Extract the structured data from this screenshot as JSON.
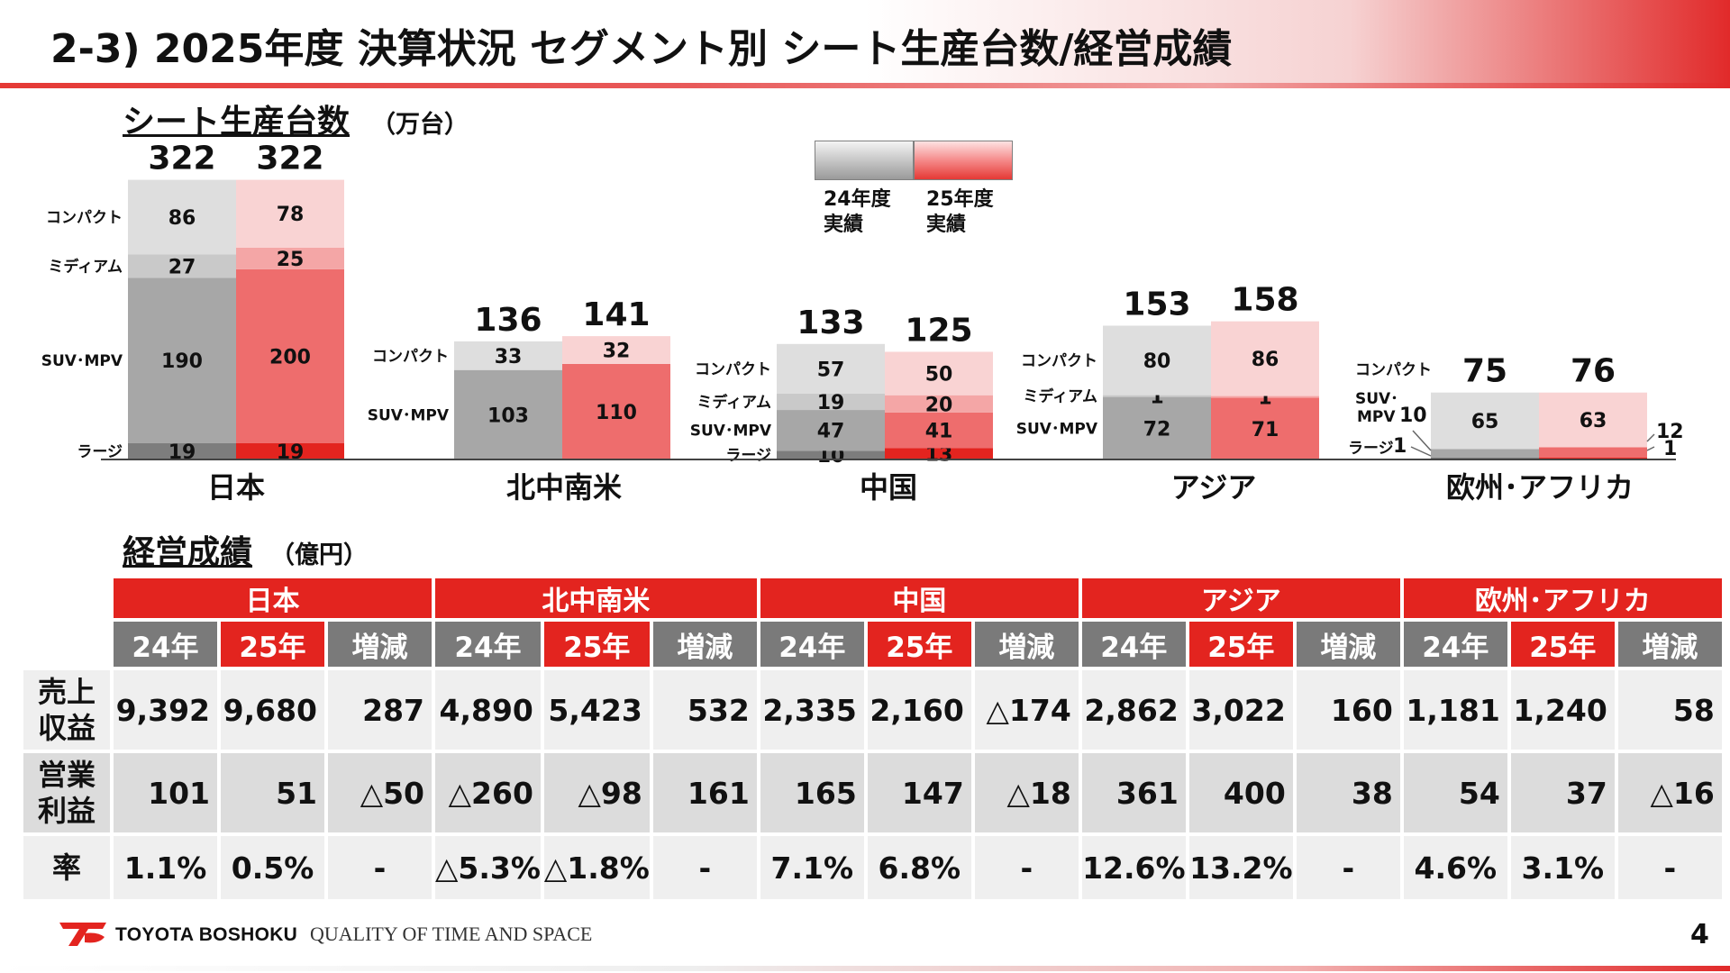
{
  "title": "2-3) 2025年度 決算状況 セグメント別 シート生産台数/経営成績",
  "production": {
    "title": "シート生産台数",
    "unit": "（万台）"
  },
  "legend": {
    "prev": "24年度\n実績",
    "curr": "25年度\n実績",
    "colors": {
      "prev_base": "#9e9e9e",
      "curr_base": "#e3241f"
    }
  },
  "chart_data": {
    "type": "bar",
    "stacked": true,
    "stack_order_bottom_to_top": [
      "ラージ",
      "SUV･MPV",
      "ミディアム",
      "コンパクト"
    ],
    "series_names_prev": "24年度実績",
    "series_names_curr": "25年度実績",
    "groups": [
      {
        "name": "日本",
        "prev": {
          "total": "322",
          "segments": [
            {
              "label": "ラージ",
              "value": 19
            },
            {
              "label": "SUV･MPV",
              "value": 190
            },
            {
              "label": "ミディアム",
              "value": 27
            },
            {
              "label": "コンパクト",
              "value": 86
            }
          ]
        },
        "curr": {
          "total": "322",
          "segments": [
            {
              "label": "ラージ",
              "value": 19
            },
            {
              "label": "SUV･MPV",
              "value": 200
            },
            {
              "label": "ミディアム",
              "value": 25
            },
            {
              "label": "コンパクト",
              "value": 78
            }
          ]
        }
      },
      {
        "name": "北中南米",
        "prev": {
          "total": "136",
          "segments": [
            {
              "label": "SUV･MPV",
              "value": 103
            },
            {
              "label": "コンパクト",
              "value": 33
            }
          ]
        },
        "curr": {
          "total": "141",
          "segments": [
            {
              "label": "SUV･MPV",
              "value": 110
            },
            {
              "label": "コンパクト",
              "value": 32
            }
          ]
        }
      },
      {
        "name": "中国",
        "prev": {
          "total": "133",
          "segments": [
            {
              "label": "ラージ",
              "value": 10
            },
            {
              "label": "SUV･MPV",
              "value": 47
            },
            {
              "label": "ミディアム",
              "value": 19
            },
            {
              "label": "コンパクト",
              "value": 57
            }
          ]
        },
        "curr": {
          "total": "125",
          "segments": [
            {
              "label": "ラージ",
              "value": 13
            },
            {
              "label": "SUV･MPV",
              "value": 41
            },
            {
              "label": "ミディアム",
              "value": 20
            },
            {
              "label": "コンパクト",
              "value": 50
            }
          ]
        }
      },
      {
        "name": "アジア",
        "prev": {
          "total": "153",
          "segments": [
            {
              "label": "SUV･MPV",
              "value": 72
            },
            {
              "label": "ミディアム",
              "value": 1
            },
            {
              "label": "コンパクト",
              "value": 80
            }
          ]
        },
        "curr": {
          "total": "158",
          "segments": [
            {
              "label": "SUV･MPV",
              "value": 71
            },
            {
              "label": "ミディアム",
              "value": 1
            },
            {
              "label": "コンパクト",
              "value": 86
            }
          ]
        }
      },
      {
        "name": "欧州･アフリカ",
        "prev": {
          "total": "75",
          "segments": [
            {
              "label": "ラージ",
              "value": 1
            },
            {
              "label": "SUV･MPV",
              "value": 10
            },
            {
              "label": "コンパクト",
              "value": 65
            }
          ]
        },
        "curr": {
          "total": "76",
          "segments": [
            {
              "label": "ラージ",
              "value": 1
            },
            {
              "label": "SUV･MPV",
              "value": 12
            },
            {
              "label": "コンパクト",
              "value": 63
            }
          ]
        }
      }
    ]
  },
  "results": {
    "title": "経営成績",
    "unit": "（億円）",
    "col_labels": [
      "24年",
      "25年",
      "増減"
    ],
    "segments": [
      {
        "name": "日本",
        "sales": [
          "9,392",
          "9,680",
          "287"
        ],
        "op": [
          "101",
          "51",
          "△50"
        ],
        "rate": [
          "1.1%",
          "0.5%",
          "-"
        ]
      },
      {
        "name": "北中南米",
        "sales": [
          "4,890",
          "5,423",
          "532"
        ],
        "op": [
          "△260",
          "△98",
          "161"
        ],
        "rate": [
          "△5.3%",
          "△1.8%",
          "-"
        ]
      },
      {
        "name": "中国",
        "sales": [
          "2,335",
          "2,160",
          "△174"
        ],
        "op": [
          "165",
          "147",
          "△18"
        ],
        "rate": [
          "7.1%",
          "6.8%",
          "-"
        ]
      },
      {
        "name": "アジア",
        "sales": [
          "2,862",
          "3,022",
          "160"
        ],
        "op": [
          "361",
          "400",
          "38"
        ],
        "rate": [
          "12.6%",
          "13.2%",
          "-"
        ]
      },
      {
        "name": "欧州･アフリカ",
        "sales": [
          "1,181",
          "1,240",
          "58"
        ],
        "op": [
          "54",
          "37",
          "△16"
        ],
        "rate": [
          "4.6%",
          "3.1%",
          "-"
        ]
      }
    ],
    "row_labels": {
      "sales": "売上\n収益",
      "op": "営業\n利益",
      "rate": "率"
    }
  },
  "footer": {
    "brand": "TOYOTA BOSHOKU",
    "tagline": "QUALITY OF TIME AND SPACE",
    "page": "4"
  }
}
